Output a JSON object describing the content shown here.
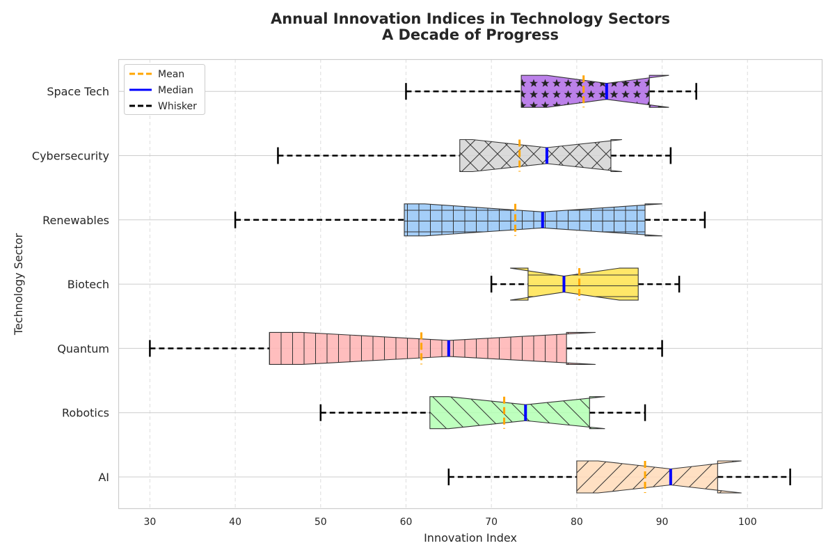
{
  "chart_data": {
    "type": "boxplot",
    "orientation": "horizontal",
    "notched": true,
    "title": "Annual Innovation Indices in Technology Sectors",
    "subtitle": "A Decade of Progress",
    "xlabel": "Innovation Index",
    "ylabel": "Technology Sector",
    "xlim": [
      26.3,
      108.7
    ],
    "xticks": [
      30,
      40,
      50,
      60,
      70,
      80,
      90,
      100
    ],
    "grid": true,
    "legend_position": "upper-left",
    "legend": [
      {
        "label": "Mean",
        "color": "#FFA500",
        "style": "dashed"
      },
      {
        "label": "Median",
        "color": "#0000FF",
        "style": "solid"
      },
      {
        "label": "Whisker",
        "color": "#000000",
        "style": "dashed"
      }
    ],
    "series": [
      {
        "name": "AI",
        "whisker_low": 65,
        "q1": 80,
        "median": 91,
        "q3": 96.5,
        "whisker_high": 105,
        "mean": 88,
        "notch_low": 82.5,
        "notch_high": 99.3,
        "color": "#FFDAB9",
        "hatch": "/"
      },
      {
        "name": "Robotics",
        "whisker_low": 50,
        "q1": 62.8,
        "median": 74,
        "q3": 81.5,
        "whisker_high": 88,
        "mean": 71.5,
        "notch_low": 65,
        "notch_high": 83.3,
        "color": "#B3FFB3",
        "hatch": "\\"
      },
      {
        "name": "Quantum",
        "whisker_low": 30,
        "q1": 44,
        "median": 65,
        "q3": 78.8,
        "whisker_high": 90,
        "mean": 61.8,
        "notch_low": 47.8,
        "notch_high": 82.2,
        "color": "#FFB3B3",
        "hatch": "|"
      },
      {
        "name": "Biotech",
        "whisker_low": 70,
        "q1": 74.3,
        "median": 78.5,
        "q3": 87.2,
        "whisker_high": 92,
        "mean": 80.3,
        "notch_low": 72.2,
        "notch_high": 85,
        "color": "#FFE34D",
        "hatch": "-"
      },
      {
        "name": "Renewables",
        "whisker_low": 40,
        "q1": 59.8,
        "median": 76,
        "q3": 88,
        "whisker_high": 95,
        "mean": 72.8,
        "notch_low": 62.2,
        "notch_high": 90,
        "color": "#94C6F7",
        "hatch": "+"
      },
      {
        "name": "Cybersecurity",
        "whisker_low": 45,
        "q1": 66.3,
        "median": 76.5,
        "q3": 84,
        "whisker_high": 91,
        "mean": 73.3,
        "notch_low": 67.8,
        "notch_high": 85.3,
        "color": "#D3D3D3",
        "hatch": "x"
      },
      {
        "name": "Space Tech",
        "whisker_low": 60,
        "q1": 73.5,
        "median": 83.5,
        "q3": 88.5,
        "whisker_high": 94,
        "mean": 80.8,
        "notch_low": 76.5,
        "notch_high": 90.8,
        "color": "#B06BE6",
        "hatch": "*"
      }
    ]
  }
}
